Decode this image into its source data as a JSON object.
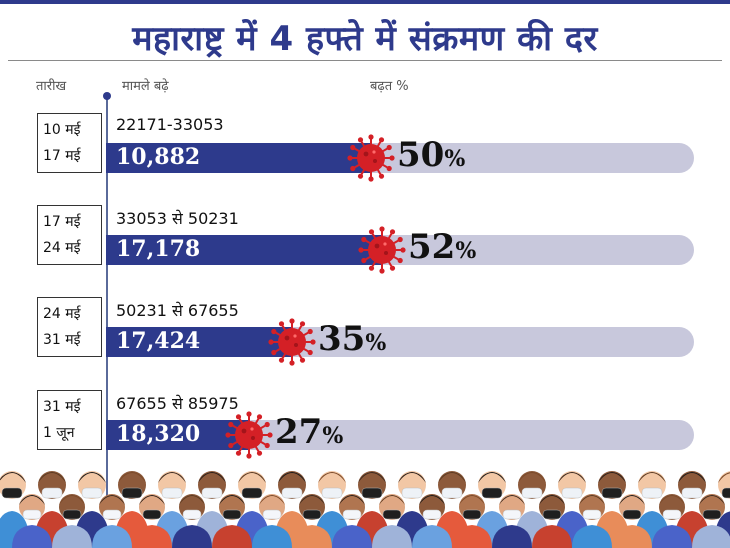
{
  "title": "महाराष्ट्र में 4 हफ्ते में संक्रमण की दर",
  "headers": {
    "date": "तारीख",
    "cases": "मामले बढ़े",
    "growth": "बढ़त %"
  },
  "colors": {
    "title": "#2e3a8c",
    "bar": "#2d3a8c",
    "track": "#c8c8dc",
    "virus": "#d42026"
  },
  "chart_data": {
    "type": "bar",
    "categories": [
      "10 मई - 17 मई",
      "17 मई - 24 मई",
      "24 मई - 31 मई",
      "31 मई - 1 जून"
    ],
    "rows": [
      {
        "date_start": "10 मई",
        "date_end": "17 मई",
        "range": "22171-33053",
        "count": "10,882",
        "pct_num": "50",
        "pct_sign": "%",
        "value": 50
      },
      {
        "date_start": "17 मई",
        "date_end": "24 मई",
        "range": "33053 से 50231",
        "count": "17,178",
        "pct_num": "52",
        "pct_sign": "%",
        "value": 52
      },
      {
        "date_start": "24 मई",
        "date_end": "31 मई",
        "range": "50231 से 67655",
        "count": "17,424",
        "pct_num": "35",
        "pct_sign": "%",
        "value": 35
      },
      {
        "date_start": "31 मई",
        "date_end": "1 जून",
        "range": "67655 से 85975",
        "count": "18,320",
        "pct_num": "27",
        "pct_sign": "%",
        "value": 27
      }
    ],
    "values": [
      50,
      52,
      35,
      27
    ],
    "xlim": [
      0,
      100
    ]
  }
}
